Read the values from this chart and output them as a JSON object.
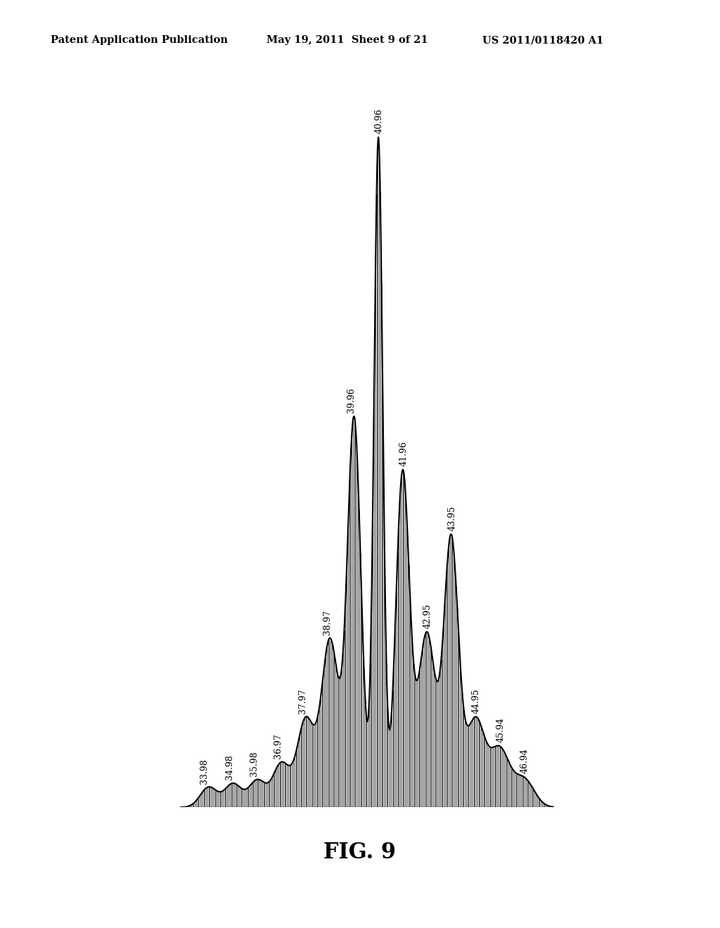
{
  "title": "FIG. 9",
  "header_left": "Patent Application Publication",
  "header_mid": "May 19, 2011  Sheet 9 of 21",
  "header_right": "US 2011/0118420 A1",
  "background_color": "#ffffff",
  "text_color": "#000000",
  "peak_labels": [
    "33.98",
    "34.98",
    "35.98",
    "36.97",
    "37.97",
    "38.97",
    "39.96",
    "40.96",
    "41.96",
    "42.95",
    "43.95",
    "44.95",
    "45.94",
    "46.94"
  ],
  "peak_positions": [
    33.98,
    34.98,
    35.98,
    36.97,
    37.97,
    38.97,
    39.96,
    40.96,
    41.96,
    42.95,
    43.95,
    44.95,
    45.94,
    46.94
  ],
  "peak_heights": [
    0.03,
    0.035,
    0.04,
    0.065,
    0.13,
    0.25,
    0.58,
    1.0,
    0.5,
    0.26,
    0.4,
    0.13,
    0.085,
    0.042
  ],
  "peak_sigmas": [
    0.35,
    0.35,
    0.35,
    0.35,
    0.35,
    0.35,
    0.28,
    0.18,
    0.28,
    0.35,
    0.3,
    0.38,
    0.4,
    0.42
  ],
  "xmin": 32.8,
  "xmax": 48.2,
  "ymin": 0.0,
  "ymax": 1.08,
  "label_text_offsets": {
    "33.98": [
      -0.18,
      0.005
    ],
    "34.98": [
      -0.15,
      0.005
    ],
    "35.98": [
      -0.13,
      0.005
    ],
    "36.97": [
      -0.13,
      0.005
    ],
    "37.97": [
      -0.12,
      0.005
    ],
    "38.97": [
      -0.11,
      0.005
    ],
    "39.96": [
      -0.13,
      0.005
    ],
    "40.96": [
      0.04,
      0.005
    ],
    "41.96": [
      0.04,
      0.005
    ],
    "42.95": [
      0.04,
      0.005
    ],
    "43.95": [
      0.04,
      0.005
    ],
    "44.95": [
      0.04,
      0.005
    ],
    "45.94": [
      0.04,
      0.005
    ],
    "46.94": [
      0.04,
      0.005
    ]
  }
}
